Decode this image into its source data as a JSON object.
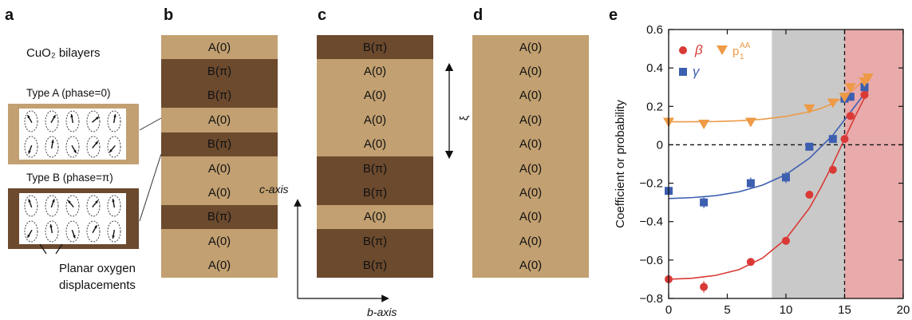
{
  "panels": {
    "a": {
      "letter": "a",
      "title": "CuO₂ bilayers",
      "type_a_label": "Type A (phase=0)",
      "type_b_label": "Type B (phase=π)",
      "planar_line1": "Planar oxygen",
      "planar_line2": "displacements"
    },
    "b": {
      "letter": "b",
      "layers": [
        {
          "type": "A",
          "label": "A(0)"
        },
        {
          "type": "B",
          "label": "B(π)"
        },
        {
          "type": "B",
          "label": "B(π)"
        },
        {
          "type": "A",
          "label": "A(0)"
        },
        {
          "type": "B",
          "label": "B(π)"
        },
        {
          "type": "A",
          "label": "A(0)"
        },
        {
          "type": "A",
          "label": "A(0)"
        },
        {
          "type": "B",
          "label": "B(π)"
        },
        {
          "type": "A",
          "label": "A(0)"
        },
        {
          "type": "A",
          "label": "A(0)"
        }
      ]
    },
    "c": {
      "letter": "c",
      "xi_label": "ξ",
      "c_axis_label": "c-axis",
      "b_axis_label": "b-axis",
      "layers": [
        {
          "type": "B",
          "label": "B(π)"
        },
        {
          "type": "A",
          "label": "A(0)"
        },
        {
          "type": "A",
          "label": "A(0)"
        },
        {
          "type": "A",
          "label": "A(0)"
        },
        {
          "type": "A",
          "label": "A(0)"
        },
        {
          "type": "B",
          "label": "B(π)"
        },
        {
          "type": "B",
          "label": "B(π)"
        },
        {
          "type": "A",
          "label": "A(0)"
        },
        {
          "type": "B",
          "label": "B(π)"
        },
        {
          "type": "B",
          "label": "B(π)"
        }
      ]
    },
    "d": {
      "letter": "d",
      "layers": [
        {
          "type": "A",
          "label": "A(0)"
        },
        {
          "type": "A",
          "label": "A(0)"
        },
        {
          "type": "A",
          "label": "A(0)"
        },
        {
          "type": "A",
          "label": "A(0)"
        },
        {
          "type": "A",
          "label": "A(0)"
        },
        {
          "type": "A",
          "label": "A(0)"
        },
        {
          "type": "A",
          "label": "A(0)"
        },
        {
          "type": "A",
          "label": "A(0)"
        },
        {
          "type": "A",
          "label": "A(0)"
        },
        {
          "type": "A",
          "label": "A(0)"
        }
      ]
    },
    "e": {
      "letter": "e"
    }
  },
  "colors": {
    "layer_A": "#c2a071",
    "layer_B": "#6c4a2e",
    "beta": "#d93a36",
    "gamma": "#3d5fb0",
    "p1AA": "#ee9a46",
    "gray_band": "#c9c9c9",
    "pink_band": "#e8aaaa"
  },
  "chart_data": {
    "type": "scatter",
    "xlabel_var": "B",
    "xlabel_unit": "(T)",
    "ylabel": "Coefficient or probability",
    "xlim": [
      0,
      20
    ],
    "ylim": [
      -0.8,
      0.6
    ],
    "xticks": [
      "0",
      "5",
      "10",
      "15",
      "20"
    ],
    "yticks": [
      "−0.8",
      "−0.6",
      "−0.4",
      "−0.2",
      "0",
      "0.2",
      "0.4",
      "0.6"
    ],
    "shaded_regions": [
      {
        "x_start": 8.8,
        "x_end": 15,
        "color": "gray"
      },
      {
        "x_start": 15,
        "x_end": 20,
        "color": "pink"
      }
    ],
    "vline_x": 15,
    "hline_y": 0,
    "legend": {
      "beta": "β",
      "gamma": "γ",
      "p1AA_base": "p",
      "p1AA_sub": "1",
      "p1AA_sup": "AA"
    },
    "series": [
      {
        "key": "beta",
        "name": "β",
        "marker": "circle",
        "x": [
          0,
          3,
          7,
          10,
          12,
          14,
          15,
          15.5,
          16.7
        ],
        "y": [
          -0.7,
          -0.74,
          -0.61,
          -0.5,
          -0.26,
          -0.13,
          0.03,
          0.15,
          0.26
        ],
        "err": [
          0.02,
          0.03,
          0.01,
          0.01,
          0.01,
          0.01,
          0.01,
          0.01,
          0.01
        ]
      },
      {
        "key": "gamma",
        "name": "γ",
        "marker": "square",
        "x": [
          0,
          3,
          7,
          10,
          12,
          14,
          15,
          15.5,
          16.7
        ],
        "y": [
          -0.24,
          -0.3,
          -0.2,
          -0.17,
          -0.01,
          0.03,
          0.24,
          0.25,
          0.3
        ],
        "err": [
          0.02,
          0.03,
          0.03,
          0.03,
          0.02,
          0.01,
          0.02,
          0.02,
          0.02
        ]
      },
      {
        "key": "p1AA",
        "name": "p1AA",
        "marker": "triangle-down",
        "x": [
          0,
          3,
          7,
          12,
          14,
          15,
          15.5,
          16.7,
          17
        ],
        "y": [
          0.12,
          0.11,
          0.12,
          0.19,
          0.22,
          0.25,
          0.3,
          0.33,
          0.35
        ],
        "err": [
          0.01,
          0.01,
          0.01,
          0.01,
          0.01,
          0.01,
          0.01,
          0.01,
          0.01
        ]
      }
    ],
    "fits": [
      {
        "key": "beta",
        "x": [
          0,
          2,
          4,
          6,
          8,
          10,
          12,
          13,
          14,
          15,
          16,
          17
        ],
        "y": [
          -0.7,
          -0.695,
          -0.68,
          -0.65,
          -0.59,
          -0.49,
          -0.33,
          -0.22,
          -0.1,
          0.03,
          0.16,
          0.28
        ]
      },
      {
        "key": "gamma",
        "x": [
          0,
          2,
          4,
          6,
          8,
          10,
          12,
          13,
          14,
          15,
          16,
          17
        ],
        "y": [
          -0.28,
          -0.275,
          -0.265,
          -0.245,
          -0.21,
          -0.155,
          -0.07,
          -0.01,
          0.05,
          0.13,
          0.21,
          0.29
        ]
      },
      {
        "key": "p1AA",
        "x": [
          0,
          2,
          4,
          6,
          8,
          10,
          12,
          13,
          14,
          15,
          16,
          17
        ],
        "y": [
          0.12,
          0.12,
          0.121,
          0.125,
          0.133,
          0.148,
          0.172,
          0.19,
          0.215,
          0.25,
          0.3,
          0.36
        ]
      }
    ]
  }
}
